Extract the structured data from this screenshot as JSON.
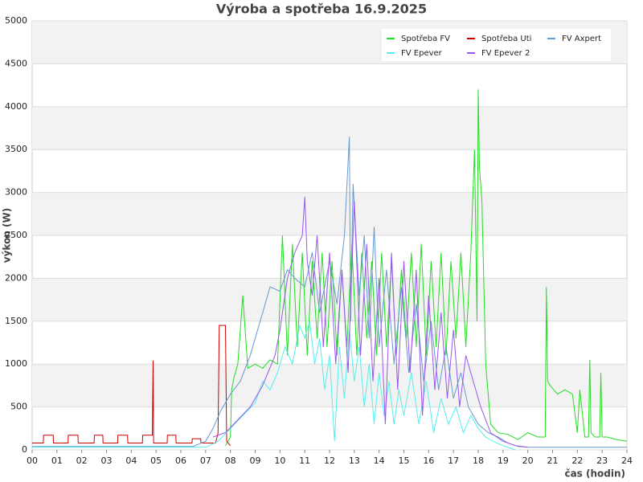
{
  "chart_data": {
    "type": "line",
    "title": "Výroba a spotřeba 16.9.2025",
    "xlabel": "čas (hodin)",
    "ylabel": "výkon (W)",
    "xlim": [
      0,
      24
    ],
    "xticks": [
      {
        "value": 0,
        "label": "00"
      },
      {
        "value": 1,
        "label": "01"
      },
      {
        "value": 2,
        "label": "02"
      },
      {
        "value": 3,
        "label": "03"
      },
      {
        "value": 4,
        "label": "04"
      },
      {
        "value": 5,
        "label": "05"
      },
      {
        "value": 6,
        "label": "06"
      },
      {
        "value": 7,
        "label": "07"
      },
      {
        "value": 8,
        "label": "08"
      },
      {
        "value": 9,
        "label": "09"
      },
      10,
      11,
      12,
      13,
      14,
      15,
      16,
      17,
      18,
      19,
      20,
      21,
      22,
      23,
      24
    ],
    "ylim": [
      0,
      5000
    ],
    "yticks": [
      0,
      500,
      1000,
      1500,
      2000,
      2500,
      3000,
      3500,
      4000,
      4500,
      5000
    ],
    "grid": true,
    "legend": "upper right",
    "series": [
      {
        "name": "Spotřeba FV",
        "color": "#22dd22",
        "x": [
          7.8,
          8.0,
          8.05,
          8.15,
          8.3,
          8.5,
          8.7,
          9.0,
          9.3,
          9.6,
          9.9,
          10.1,
          10.3,
          10.5,
          10.7,
          10.9,
          11.1,
          11.3,
          11.5,
          11.7,
          11.9,
          12.1,
          12.3,
          12.5,
          12.7,
          12.9,
          13.1,
          13.3,
          13.5,
          13.7,
          13.9,
          14.1,
          14.3,
          14.5,
          14.7,
          14.9,
          15.1,
          15.3,
          15.5,
          15.7,
          15.9,
          16.1,
          16.3,
          16.5,
          16.7,
          16.9,
          17.1,
          17.3,
          17.5,
          17.7,
          17.85,
          17.95,
          18.0,
          18.05,
          18.15,
          18.3,
          18.5,
          18.8,
          19.2,
          19.6,
          20.0,
          20.4,
          20.7,
          20.75,
          20.8,
          20.9,
          21.2,
          21.5,
          21.8,
          22.0,
          22.1,
          22.3,
          22.45,
          22.5,
          22.55,
          22.7,
          22.9,
          22.95,
          23.0,
          23.2,
          23.6,
          24
        ],
        "values": [
          50,
          150,
          700,
          850,
          1000,
          1800,
          950,
          1000,
          950,
          1050,
          1000,
          2500,
          1100,
          2400,
          1200,
          2300,
          1100,
          2200,
          1300,
          2300,
          1200,
          2200,
          1100,
          2100,
          1200,
          2400,
          1100,
          2300,
          1300,
          2200,
          1100,
          2300,
          1200,
          2200,
          1100,
          2100,
          1300,
          2300,
          1200,
          2400,
          1100,
          2200,
          1200,
          2300,
          1100,
          2200,
          1300,
          2300,
          1200,
          2300,
          3500,
          1500,
          4200,
          3300,
          2900,
          1000,
          300,
          200,
          180,
          120,
          200,
          150,
          150,
          1900,
          800,
          750,
          650,
          700,
          650,
          200,
          700,
          150,
          150,
          1050,
          200,
          150,
          150,
          900,
          150,
          150,
          120,
          100
        ]
      },
      {
        "name": "Spotřeba Uti",
        "color": "#cc0000",
        "x": [
          0,
          0.45,
          0.46,
          0.85,
          0.86,
          1.45,
          1.46,
          1.85,
          1.86,
          2.5,
          2.51,
          2.85,
          2.86,
          3.45,
          3.46,
          3.85,
          3.86,
          4.45,
          4.46,
          4.85,
          4.88,
          4.9,
          4.92,
          5.45,
          5.46,
          5.8,
          5.81,
          6.45,
          6.46,
          6.8,
          6.81,
          7.4,
          7.5,
          7.55,
          7.65,
          7.8,
          7.85,
          8.0
        ],
        "values": [
          80,
          80,
          170,
          170,
          80,
          80,
          170,
          170,
          80,
          80,
          170,
          170,
          80,
          80,
          170,
          170,
          80,
          80,
          170,
          170,
          1040,
          80,
          80,
          80,
          170,
          170,
          80,
          80,
          130,
          130,
          80,
          80,
          200,
          1450,
          1450,
          1450,
          100,
          50
        ]
      },
      {
        "name": "FV Axpert",
        "color": "#6699cc",
        "x": [
          0,
          6.5,
          7.0,
          7.3,
          7.6,
          8.0,
          8.4,
          8.8,
          9.0,
          9.3,
          9.6,
          10.0,
          10.3,
          10.6,
          11.0,
          11.3,
          11.6,
          12.0,
          12.3,
          12.6,
          12.8,
          12.85,
          12.95,
          13.2,
          13.4,
          13.6,
          13.8,
          14.0,
          14.3,
          14.6,
          14.9,
          15.2,
          15.5,
          15.8,
          16.1,
          16.4,
          16.7,
          17.0,
          17.3,
          17.6,
          18.0,
          18.4,
          18.8,
          19.2,
          19.6,
          20.0,
          24
        ],
        "values": [
          40,
          40,
          100,
          250,
          450,
          650,
          800,
          1100,
          1300,
          1600,
          1900,
          1850,
          2100,
          2000,
          1900,
          2300,
          1600,
          2200,
          1700,
          2500,
          3650,
          1500,
          3100,
          1800,
          2500,
          1300,
          2600,
          1200,
          2100,
          1000,
          1900,
          900,
          1700,
          800,
          1500,
          700,
          1200,
          600,
          900,
          500,
          300,
          200,
          150,
          80,
          40,
          30,
          30
        ]
      },
      {
        "name": "FV Epever",
        "color": "#55eeee",
        "x": [
          0,
          7.0,
          7.5,
          8.0,
          8.5,
          9.0,
          9.3,
          9.6,
          9.9,
          10.2,
          10.5,
          10.8,
          11.0,
          11.2,
          11.4,
          11.6,
          11.8,
          12.0,
          12.2,
          12.4,
          12.6,
          12.8,
          13.0,
          13.2,
          13.4,
          13.6,
          13.8,
          14.0,
          14.2,
          14.4,
          14.6,
          14.8,
          15.0,
          15.3,
          15.6,
          15.9,
          16.2,
          16.5,
          16.8,
          17.1,
          17.4,
          17.7,
          18.0,
          18.3,
          18.6,
          19.0,
          19.3,
          19.5
        ],
        "values": [
          30,
          30,
          100,
          250,
          400,
          550,
          800,
          700,
          900,
          1200,
          1000,
          1450,
          1300,
          1500,
          1000,
          1300,
          700,
          1100,
          100,
          1200,
          600,
          1400,
          800,
          1200,
          500,
          1000,
          300,
          900,
          400,
          800,
          300,
          700,
          400,
          900,
          300,
          800,
          200,
          600,
          300,
          500,
          200,
          400,
          250,
          150,
          100,
          50,
          20,
          0
        ]
      },
      {
        "name": "FV Epever 2",
        "color": "#9955ee",
        "x": [
          7.3,
          7.8,
          8.3,
          8.8,
          9.3,
          9.8,
          10.0,
          10.3,
          10.6,
          10.9,
          11.0,
          11.1,
          11.3,
          11.5,
          11.75,
          12.0,
          12.25,
          12.5,
          12.75,
          13.0,
          13.25,
          13.5,
          13.75,
          14.0,
          14.25,
          14.5,
          14.75,
          15.0,
          15.25,
          15.5,
          15.75,
          16.0,
          16.25,
          16.5,
          16.75,
          17.0,
          17.25,
          17.5,
          17.8,
          18.1,
          18.5,
          19.0,
          19.5,
          20.0
        ],
        "values": [
          150,
          200,
          350,
          500,
          750,
          1100,
          1400,
          2000,
          2300,
          2500,
          2950,
          2200,
          1800,
          2500,
          1200,
          2300,
          1000,
          2100,
          900,
          2900,
          1100,
          2400,
          800,
          2000,
          300,
          2300,
          700,
          2200,
          900,
          2100,
          400,
          1800,
          700,
          1600,
          600,
          1400,
          500,
          1100,
          800,
          500,
          200,
          100,
          50,
          30
        ]
      }
    ]
  }
}
